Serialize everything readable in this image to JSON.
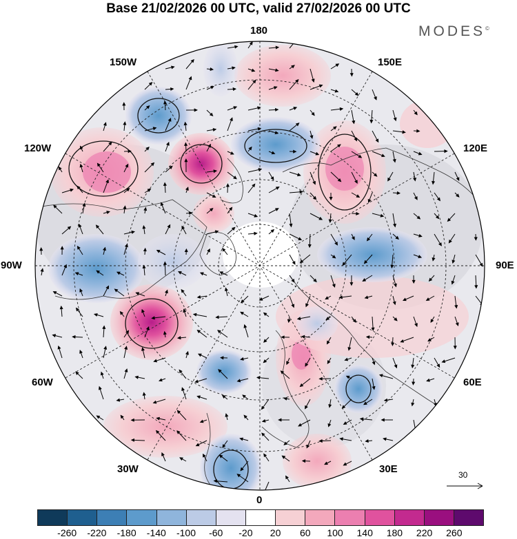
{
  "header": {
    "title": "Base 21/02/2026 00 UTC, valid 27/02/2026 00 UTC",
    "brand": "MODES",
    "brand_mark": "©"
  },
  "map": {
    "projection": "north-polar-stereographic",
    "longitude_labels": {
      "top": "180",
      "bottom": "0",
      "left": "90W",
      "right": "90E",
      "upper_left_1": "150W",
      "upper_left_2": "120W",
      "lower_left_1": "60W",
      "lower_left_2": "30W",
      "upper_right_1": "150E",
      "upper_right_2": "120E",
      "lower_right_1": "60E",
      "lower_right_2": "30E"
    },
    "reference_vector": {
      "value": "30"
    }
  },
  "colorbar": {
    "colors": [
      "#0f3a5a",
      "#1f5f8f",
      "#3d7fb5",
      "#5d9bcc",
      "#8fb5dc",
      "#bccbe6",
      "#e4e2f0",
      "#ffffff",
      "#f6d0d4",
      "#f3a8bc",
      "#ec7fb0",
      "#e0529e",
      "#c32a8f",
      "#9a0f7f",
      "#5e0a6d"
    ],
    "ticks": [
      "-260",
      "-220",
      "-180",
      "-140",
      "-100",
      "-60",
      "-20",
      "20",
      "60",
      "100",
      "140",
      "180",
      "220",
      "260"
    ]
  }
}
